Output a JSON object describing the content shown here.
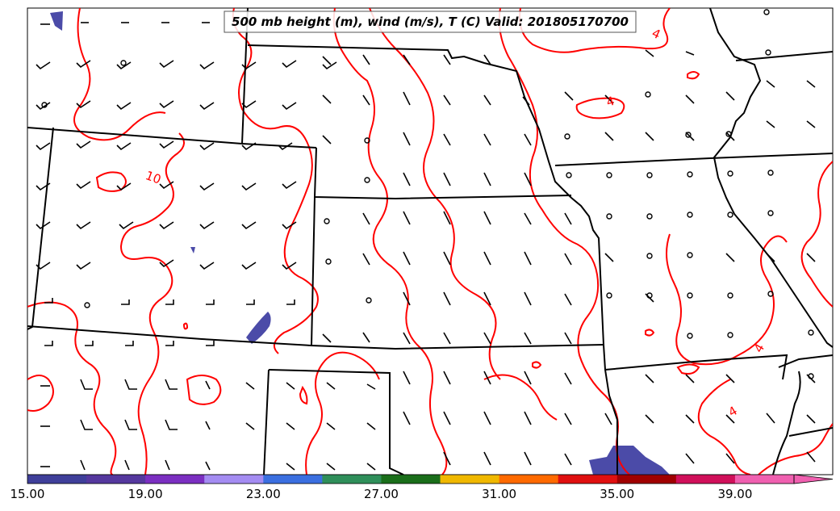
{
  "title": "500 mb height (m), wind (m/s), T (C) Valid: 201805170700",
  "contour_labels": [
    "4",
    "4",
    "10",
    "4",
    "4"
  ],
  "colorbar": {
    "ticks": [
      "15.00",
      "19.00",
      "23.00",
      "27.00",
      "31.00",
      "35.00",
      "39.00"
    ],
    "colors": [
      "#3f3f9a",
      "#55389e",
      "#7b2fc1",
      "#a48cf2",
      "#3b6fe0",
      "#2f8f5a",
      "#1a6e1a",
      "#f0b800",
      "#ff6a00",
      "#e01010",
      "#a00000",
      "#d0105a",
      "#f060b0"
    ],
    "extend": "max"
  },
  "style_colors": {
    "contour": "#ff0000",
    "boundary": "#000000",
    "shading": "#4b4ba8"
  }
}
